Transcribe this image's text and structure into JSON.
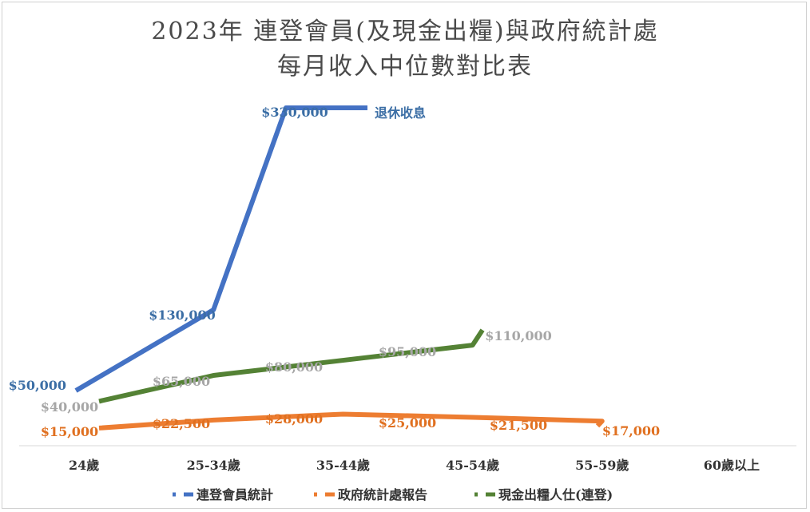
{
  "chart_data": {
    "type": "line",
    "title": "2023年 連登會員(及現金出糧)與政府統計處",
    "subtitle": "每月收入中位數對比表",
    "categories": [
      "24歲",
      "25-34歲",
      "35-44歲",
      "45-54歲",
      "55-59歲",
      "60歲以上"
    ],
    "series": [
      {
        "name": "連登會員統計",
        "color": "#4472c4",
        "label_color": "#3b6ea5",
        "values": [
          50000,
          130000,
          330000,
          330000,
          null,
          null
        ],
        "labels": [
          "$50,000",
          "$130,000",
          "$330,000",
          "退休收息",
          "",
          ""
        ]
      },
      {
        "name": "政府統計處報告",
        "color": "#ed7d31",
        "label_color": "#e07020",
        "values": [
          15000,
          22500,
          28000,
          25000,
          21500,
          17000
        ],
        "labels": [
          "$15,000",
          "$22,500",
          "$28,000",
          "$25,000",
          "$21,500",
          "$17,000"
        ]
      },
      {
        "name": "現金出糧人仕(連登)",
        "color": "#548235",
        "label_color": "#a6a6a6",
        "values": [
          40000,
          65000,
          80000,
          95000,
          110000,
          null
        ],
        "labels": [
          "$40,000",
          "$65,000",
          "$80,000",
          "$95,000",
          "$110,000",
          ""
        ]
      }
    ],
    "grid": false,
    "legend": "bottom"
  }
}
